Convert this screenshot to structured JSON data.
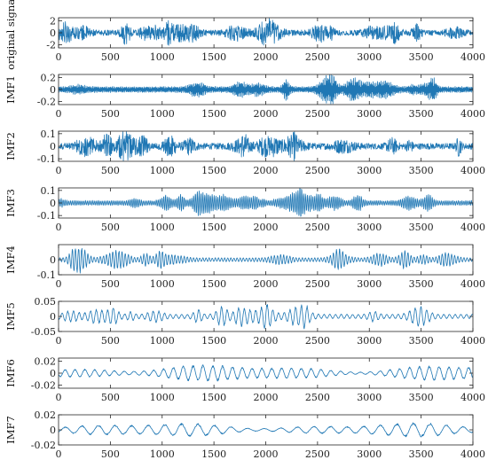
{
  "chart_data": {
    "type": "line",
    "x_range": [
      0,
      4000
    ],
    "x_ticks": [
      0,
      500,
      1000,
      1500,
      2000,
      2500,
      3000,
      3500,
      4000
    ],
    "line_color": "#1f77b4",
    "grid": false,
    "panels": [
      {
        "ylabel": "original signal",
        "ylim": [
          -2.5,
          2.5
        ],
        "yticks": [
          2,
          0,
          -2
        ],
        "ytick_labels": [
          "2",
          "0",
          "-2"
        ],
        "amplitude": 1.0,
        "period": 6,
        "style": "dense"
      },
      {
        "ylabel": "IMF1",
        "ylim": [
          -0.25,
          0.25
        ],
        "yticks": [
          0.2,
          0,
          -0.2
        ],
        "ytick_labels": [
          "0.2",
          "0",
          "-0.2"
        ],
        "amplitude": 0.09,
        "period": 7,
        "style": "bursty"
      },
      {
        "ylabel": "IMF2",
        "ylim": [
          -0.12,
          0.12
        ],
        "yticks": [
          0.1,
          0,
          -0.1
        ],
        "ytick_labels": [
          "0.1",
          "0",
          "-0.1"
        ],
        "amplitude": 0.055,
        "period": 11,
        "style": "dense"
      },
      {
        "ylabel": "IMF3",
        "ylim": [
          -0.12,
          0.12
        ],
        "yticks": [
          0.1,
          0,
          -0.1
        ],
        "ytick_labels": [
          "0.1",
          "0",
          "-0.1"
        ],
        "amplitude": 0.045,
        "period": 18,
        "style": "wavy"
      },
      {
        "ylabel": "IMF4",
        "ylim": [
          -0.1,
          0.1
        ],
        "yticks": [
          0,
          -0.1
        ],
        "ytick_labels": [
          "0",
          "-0.1"
        ],
        "amplitude": 0.03,
        "period": 30,
        "style": "wavy"
      },
      {
        "ylabel": "IMF5",
        "ylim": [
          -0.05,
          0.05
        ],
        "yticks": [
          0.05,
          0,
          -0.05
        ],
        "ytick_labels": [
          "0.05",
          "0",
          "-0.05"
        ],
        "amplitude": 0.017,
        "period": 55,
        "style": "wavy"
      },
      {
        "ylabel": "IMF6",
        "ylim": [
          -0.025,
          0.025
        ],
        "yticks": [
          0.02,
          0,
          -0.02
        ],
        "ytick_labels": [
          "0.02",
          "0",
          "-0.02"
        ],
        "amplitude": 0.012,
        "period": 95,
        "style": "smooth"
      },
      {
        "ylabel": "IMF7",
        "ylim": [
          -0.02,
          0.02
        ],
        "yticks": [
          0.02,
          0,
          -0.02
        ],
        "ytick_labels": [
          "0.02",
          "0",
          "-0.02"
        ],
        "amplitude": 0.008,
        "period": 160,
        "style": "smooth"
      }
    ]
  }
}
